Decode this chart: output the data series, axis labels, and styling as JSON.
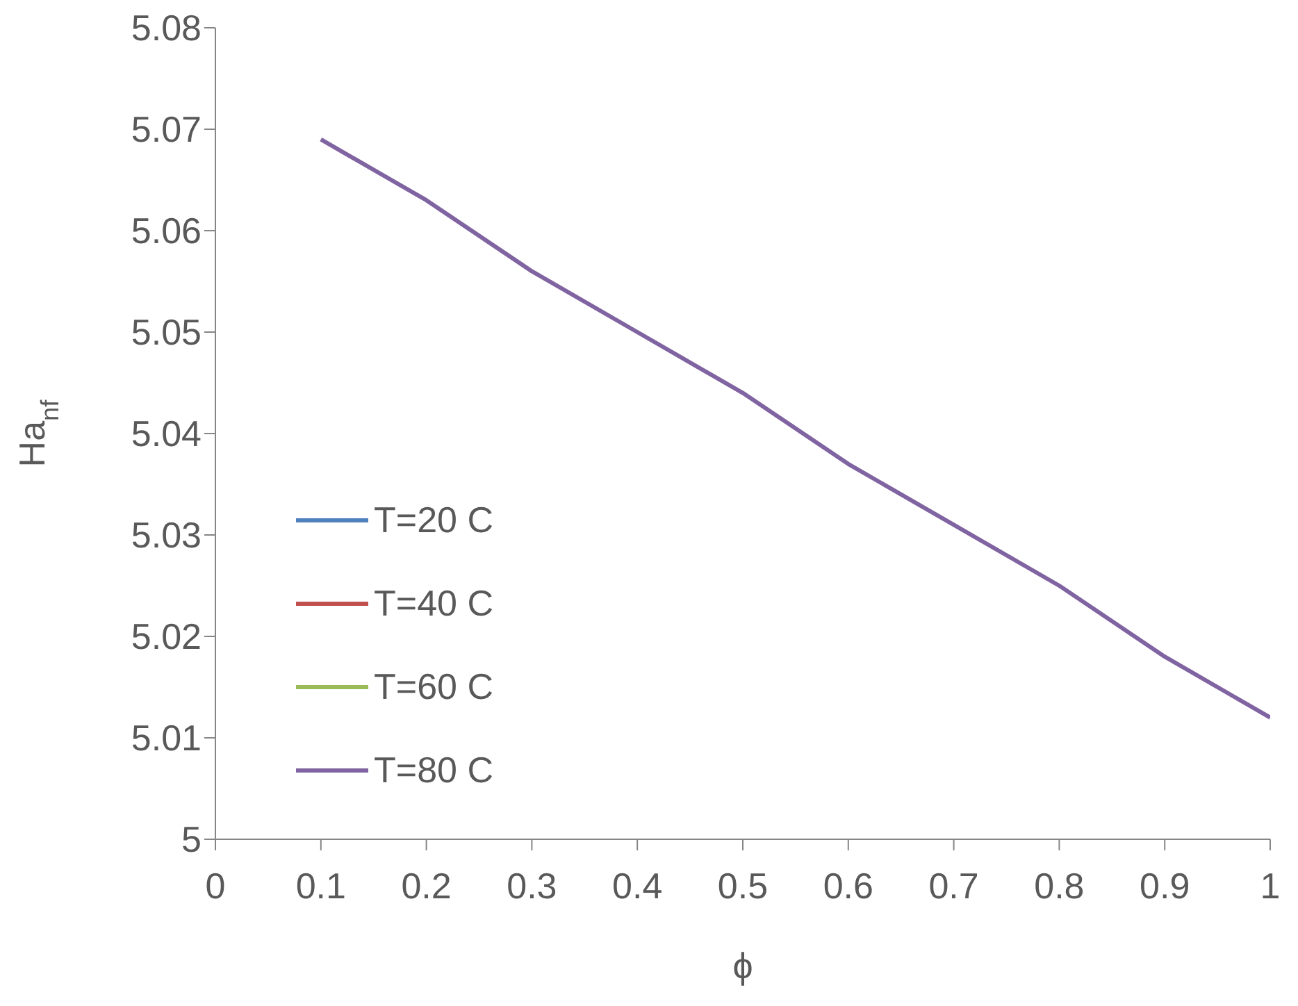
{
  "chart_data": {
    "type": "line",
    "xlabel": "ϕ",
    "ylabel": "Ha$_{nf}$",
    "x": [
      0.1,
      0.2,
      0.3,
      0.4,
      0.5,
      0.6,
      0.7,
      0.8,
      0.9,
      1
    ],
    "series": [
      {
        "name": "T=20 C",
        "color": "#4f81bd",
        "values": [
          null,
          null,
          null,
          null,
          null,
          null,
          null,
          null,
          null,
          null
        ]
      },
      {
        "name": "T=40 C",
        "color": "#c0504d",
        "values": [
          null,
          null,
          null,
          null,
          null,
          null,
          null,
          null,
          null,
          null
        ]
      },
      {
        "name": "T=60 C",
        "color": "#9bbb59",
        "values": [
          null,
          null,
          null,
          null,
          null,
          null,
          null,
          null,
          null,
          null
        ]
      },
      {
        "name": "T=80 C",
        "color": "#8064a2",
        "values": [
          5.069,
          5.063,
          5.056,
          5.05,
          5.044,
          5.037,
          5.031,
          5.025,
          5.018,
          5.012
        ]
      }
    ],
    "xlim": [
      0,
      1
    ],
    "xticks": [
      0,
      0.1,
      0.2,
      0.3,
      0.4,
      0.5,
      0.6,
      0.7,
      0.8,
      0.9,
      1
    ],
    "ylim": [
      5,
      5.08
    ],
    "yticks": [
      5,
      5.01,
      5.02,
      5.03,
      5.04,
      5.05,
      5.06,
      5.07,
      5.08
    ],
    "grid": false,
    "legend": "bottom left",
    "marker": "none",
    "line_style": "solid"
  }
}
